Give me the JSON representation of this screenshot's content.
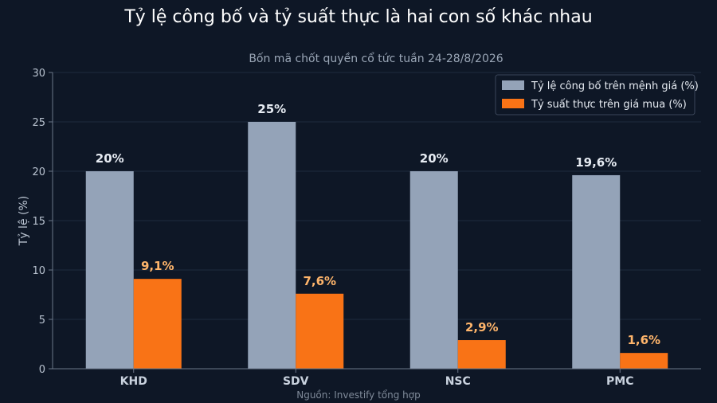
{
  "chart_data": {
    "type": "bar",
    "title": "Tỷ lệ công bố và tỷ suất thực là hai con số khác nhau",
    "subtitle": "Bốn mã chốt quyền cổ tức tuần 24-28/8/2026",
    "ylabel": "Tỷ lệ (%)",
    "xlabel": "",
    "ylim": [
      0,
      30
    ],
    "yticks": [
      0,
      5,
      10,
      15,
      20,
      25,
      30
    ],
    "categories": [
      "KHD",
      "SDV",
      "NSC",
      "PMC"
    ],
    "series": [
      {
        "name": "Tỷ lệ công bố trên mệnh giá (%)",
        "values": [
          20,
          25,
          20,
          19.6
        ],
        "labels": [
          "20%",
          "25%",
          "20%",
          "19,6%"
        ],
        "color": "#94a3b8"
      },
      {
        "name": "Tỷ suất thực trên giá mua (%)",
        "values": [
          9.1,
          7.6,
          2.9,
          1.6
        ],
        "labels": [
          "9,1%",
          "7,6%",
          "2,9%",
          "1,6%"
        ],
        "color": "#f97316"
      }
    ],
    "legend_position": "top-right",
    "grid": true,
    "source": "Nguồn: Investify tổng hợp"
  }
}
